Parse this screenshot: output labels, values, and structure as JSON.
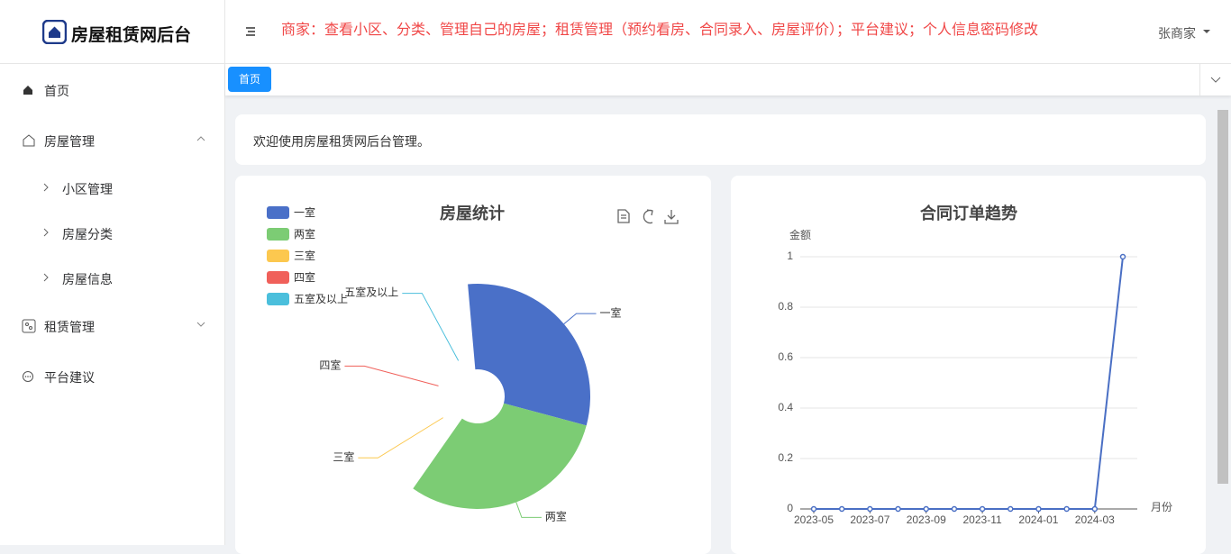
{
  "sidebar": {
    "logo_title": "房屋租赁网后台",
    "menu": [
      {
        "label": "首页"
      },
      {
        "label": "房屋管理",
        "children": [
          "小区管理",
          "房屋分类",
          "房屋信息"
        ]
      },
      {
        "label": "租赁管理"
      },
      {
        "label": "平台建议"
      }
    ]
  },
  "header": {
    "notice": "商家：查看小区、分类、管理自己的房屋；租赁管理（预约看房、合同录入、房屋评价）；平台建议；个人信息密码修改",
    "user": "张商家"
  },
  "tabs": [
    "首页"
  ],
  "welcome": "欢迎使用房屋租赁网后台管理。",
  "chart_data": [
    {
      "type": "rose",
      "title": "房屋统计",
      "categories": [
        "一室",
        "两室",
        "三室",
        "四室",
        "五室及以上"
      ],
      "values": [
        1,
        1,
        0,
        0,
        0
      ],
      "colors": [
        "#4a70c8",
        "#7ccc74",
        "#fcc84f",
        "#f0605a",
        "#4bbfdc"
      ],
      "legend": "top-left"
    },
    {
      "type": "line",
      "title": "合同订单趋势",
      "y_label": "金额",
      "x_label": "月份",
      "categories": [
        "2023-05",
        null,
        "2023-07",
        null,
        "2023-09",
        null,
        "2023-11",
        null,
        "2024-01",
        null,
        "2024-03",
        null
      ],
      "series": [
        {
          "color": "#4a6fc4",
          "values": [
            0,
            0,
            0,
            0,
            0,
            0,
            0,
            0,
            0,
            0,
            0,
            1
          ]
        }
      ],
      "ylim": [
        0,
        1
      ],
      "yticks": [
        0,
        0.2,
        0.4,
        0.6,
        0.8,
        1
      ],
      "grid": true
    }
  ]
}
